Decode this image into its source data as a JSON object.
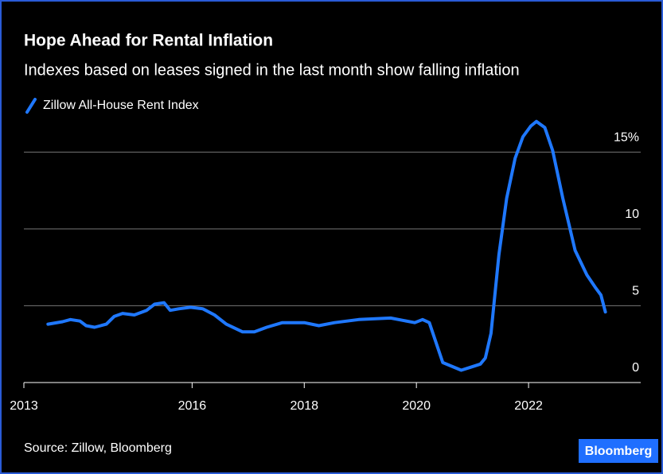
{
  "chart_data": {
    "type": "line",
    "title": "Hope Ahead for Rental Inflation",
    "subtitle": "Indexes based on leases signed in the last month show falling inflation",
    "source": "Source: Zillow, Bloomberg",
    "brand": "Bloomberg",
    "x": [
      2013.43,
      2013.69,
      2013.83,
      2014.0,
      2014.11,
      2014.26,
      2014.37,
      2014.47,
      2014.61,
      2014.76,
      2014.97,
      2015.19,
      2015.33,
      2015.5,
      2015.61,
      2015.76,
      2015.97,
      2016.19,
      2016.4,
      2016.61,
      2016.9,
      2017.11,
      2017.33,
      2017.61,
      2018.0,
      2018.26,
      2018.54,
      2018.97,
      2019.54,
      2019.97,
      2020.11,
      2020.23,
      2020.47,
      2020.8,
      2020.97,
      2021.14,
      2021.23,
      2021.33,
      2021.47,
      2021.61,
      2021.76,
      2021.9,
      2022.04,
      2022.14,
      2022.29,
      2022.43,
      2022.61,
      2022.83,
      2023.04,
      2023.19,
      2023.29,
      2023.37
    ],
    "series": [
      {
        "name": "Zillow All-House Rent Index",
        "color": "#1f78ff",
        "values": [
          3.8,
          3.96,
          4.1,
          4.0,
          3.7,
          3.6,
          3.7,
          3.8,
          4.3,
          4.5,
          4.4,
          4.7,
          5.1,
          5.2,
          4.7,
          4.8,
          4.9,
          4.8,
          4.4,
          3.8,
          3.3,
          3.3,
          3.6,
          3.9,
          3.9,
          3.7,
          3.9,
          4.1,
          4.2,
          3.9,
          4.1,
          3.9,
          1.3,
          0.8,
          1.0,
          1.2,
          1.6,
          3.2,
          8.3,
          12.0,
          14.6,
          16.0,
          16.7,
          17.0,
          16.6,
          15.1,
          12.0,
          8.6,
          7.0,
          6.2,
          5.7,
          4.6
        ]
      }
    ],
    "xlim": [
      2013,
      2024
    ],
    "xticks": [
      2013,
      2016,
      2018,
      2020,
      2022
    ],
    "ylim": [
      0,
      17.5
    ],
    "yticks": [
      0,
      5,
      10,
      {
        "value": 15,
        "label": "15%"
      }
    ],
    "grid": true
  }
}
